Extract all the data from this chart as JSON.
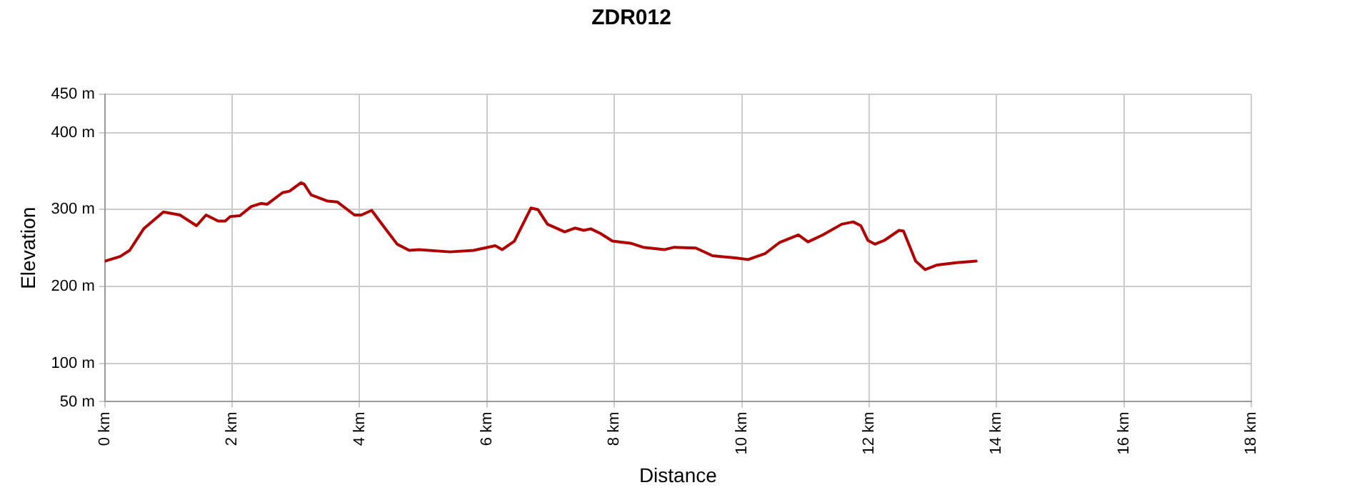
{
  "chart_data": {
    "type": "line",
    "title": "ZDR012",
    "xlabel": "Distance",
    "ylabel": "Elevation",
    "x": [
      0,
      0.24,
      0.39,
      0.61,
      0.92,
      1.18,
      1.44,
      1.59,
      1.78,
      1.89,
      1.97,
      2.12,
      2.3,
      2.45,
      2.55,
      2.79,
      2.9,
      3.08,
      3.13,
      3.24,
      3.5,
      3.65,
      3.92,
      4.03,
      4.19,
      4.37,
      4.59,
      4.78,
      4.93,
      5.42,
      5.79,
      6.13,
      6.24,
      6.43,
      6.69,
      6.8,
      6.95,
      7.22,
      7.38,
      7.52,
      7.63,
      7.78,
      7.97,
      8.27,
      8.45,
      8.79,
      8.94,
      9.28,
      9.54,
      9.92,
      10.1,
      10.37,
      10.59,
      10.89,
      11.04,
      11.27,
      11.57,
      11.75,
      11.87,
      11.98,
      12.09,
      12.24,
      12.47,
      12.54,
      12.73,
      12.88,
      13.07,
      13.37,
      13.68
    ],
    "series": [
      {
        "color": "#b00000",
        "values": [
          233,
          239,
          247,
          275,
          297,
          293,
          279,
          293,
          285,
          285,
          291,
          292,
          304,
          308,
          307,
          322,
          324,
          335,
          333,
          319,
          311,
          310,
          293,
          293,
          299,
          279,
          255,
          247,
          248,
          245,
          247,
          253,
          248,
          259,
          302,
          300,
          281,
          271,
          276,
          273,
          275,
          269,
          259,
          256,
          251,
          248,
          251,
          250,
          240,
          237,
          235,
          243,
          257,
          267,
          258,
          267,
          281,
          284,
          279,
          260,
          255,
          260,
          273,
          272,
          233,
          222,
          228,
          231,
          233
        ]
      }
    ],
    "xlim": [
      0,
      18
    ],
    "xticks": [
      {
        "value": 0,
        "label": "0 km"
      },
      {
        "value": 2,
        "label": "2 km"
      },
      {
        "value": 4,
        "label": "4 km"
      },
      {
        "value": 6,
        "label": "6 km"
      },
      {
        "value": 8,
        "label": "8 km"
      },
      {
        "value": 10,
        "label": "10 km"
      },
      {
        "value": 12,
        "label": "12 km"
      },
      {
        "value": 14,
        "label": "14 km"
      },
      {
        "value": 16,
        "label": "16 km"
      },
      {
        "value": 18,
        "label": "18 km"
      }
    ],
    "ylim": [
      50,
      450
    ],
    "yticks": [
      {
        "value": 50,
        "label": "50 m"
      },
      {
        "value": 100,
        "label": "100 m"
      },
      {
        "value": 200,
        "label": "200 m"
      },
      {
        "value": 300,
        "label": "300 m"
      },
      {
        "value": 400,
        "label": "400 m"
      },
      {
        "value": 450,
        "label": "450 m"
      }
    ],
    "grid": true,
    "legend": false,
    "marker": "none",
    "line_style": "solid"
  }
}
